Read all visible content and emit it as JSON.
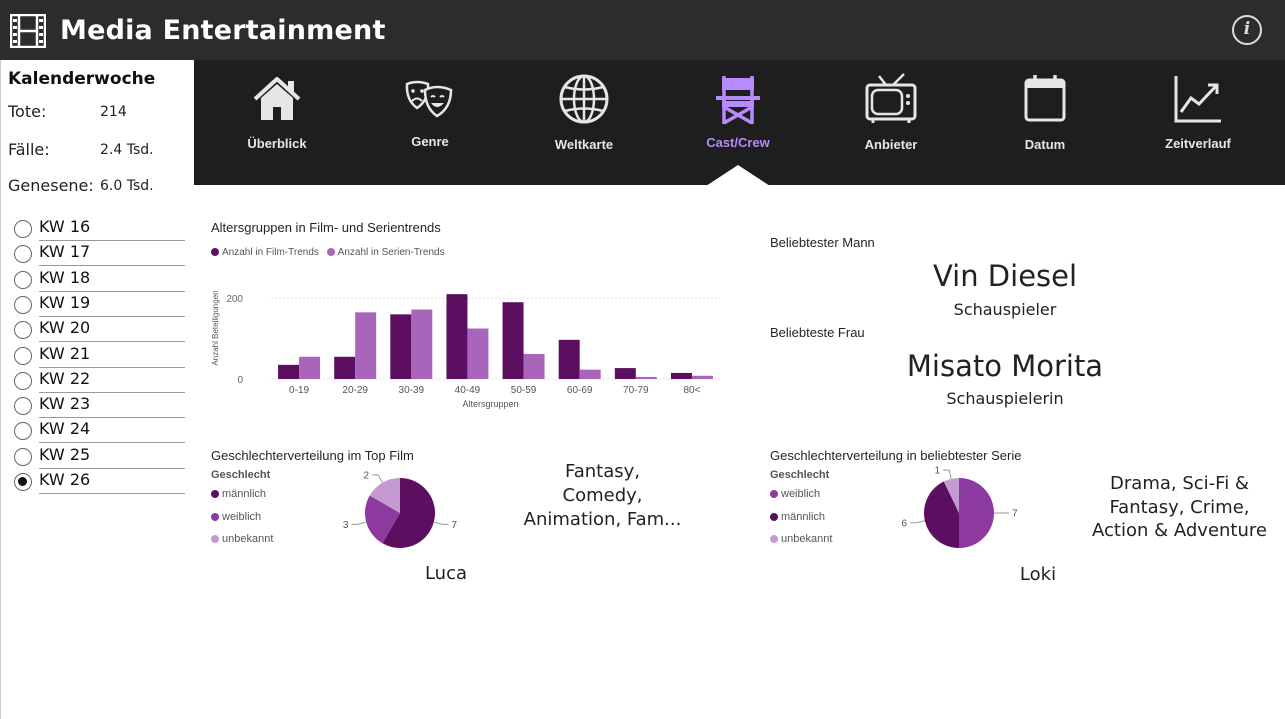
{
  "app": {
    "title": "Media Entertainment",
    "info_icon": "info-icon",
    "info_glyph": "i"
  },
  "sidebar": {
    "title": "Kalenderwoche",
    "stats": [
      {
        "label": "Tote:",
        "value": "214"
      },
      {
        "label": "Fälle:",
        "value": "2.4 Tsd."
      },
      {
        "label": "Genesene:",
        "value": "6.0 Tsd."
      }
    ],
    "weeks": [
      {
        "label": "KW 16",
        "checked": false
      },
      {
        "label": "KW 17",
        "checked": false
      },
      {
        "label": "KW 18",
        "checked": false
      },
      {
        "label": "KW 19",
        "checked": false
      },
      {
        "label": "KW 20",
        "checked": false
      },
      {
        "label": "KW 21",
        "checked": false
      },
      {
        "label": "KW 22",
        "checked": false
      },
      {
        "label": "KW 23",
        "checked": false
      },
      {
        "label": "KW 24",
        "checked": false
      },
      {
        "label": "KW 25",
        "checked": false
      },
      {
        "label": "KW 26",
        "checked": true
      }
    ]
  },
  "nav": {
    "items": [
      {
        "label": "Überblick",
        "icon": "house-icon",
        "active": false
      },
      {
        "label": "Genre",
        "icon": "theater-masks-icon",
        "active": false
      },
      {
        "label": "Weltkarte",
        "icon": "globe-icon",
        "active": false
      },
      {
        "label": "Cast/Crew",
        "icon": "director-chair-icon",
        "active": true
      },
      {
        "label": "Anbieter",
        "icon": "tv-icon",
        "active": false
      },
      {
        "label": "Datum",
        "icon": "calendar-icon",
        "active": false
      },
      {
        "label": "Zeitverlauf",
        "icon": "line-chart-icon",
        "active": false
      }
    ]
  },
  "colors": {
    "dark_purple": "#5c0e61",
    "medium_purple": "#8c3aa0",
    "light_purple": "#a865b9",
    "pale_purple": "#c59ad3",
    "active_nav": "#b78bff"
  },
  "age_chart": {
    "title": "Altersgruppen in Film- und Serientrends",
    "legend": [
      "Anzahl in Film-Trends",
      "Anzahl in Serien-Trends"
    ]
  },
  "chart_data": [
    {
      "type": "bar",
      "title": "Altersgruppen in Film- und Serientrends",
      "xlabel": "Altersgruppen",
      "ylabel": "Anzahl Beteiligungen",
      "categories": [
        "0-19",
        "20-29",
        "30-39",
        "40-49",
        "50-59",
        "60-69",
        "70-79",
        "80<"
      ],
      "series": [
        {
          "name": "Anzahl in Film-Trends",
          "color": "#5c0e61",
          "values": [
            35,
            55,
            160,
            210,
            190,
            97,
            27,
            15
          ]
        },
        {
          "name": "Anzahl in Serien-Trends",
          "color": "#a865b9",
          "values": [
            55,
            165,
            172,
            125,
            62,
            23,
            5,
            8
          ]
        }
      ],
      "ylim": [
        0,
        250
      ],
      "yticks": [
        0,
        200
      ],
      "grid": true,
      "legend_position": "top-left"
    },
    {
      "type": "pie",
      "title": "Geschlechterverteilung im Top Film",
      "legend_title": "Geschlecht",
      "slices": [
        {
          "label": "männlich",
          "value": 7,
          "color": "#5c0e61"
        },
        {
          "label": "weiblich",
          "value": 3,
          "color": "#8c3aa0"
        },
        {
          "label": "unbekannt",
          "value": 2,
          "color": "#c59ad3"
        }
      ],
      "legend_position": "left"
    },
    {
      "type": "pie",
      "title": "Geschlechterverteilung in beliebtester Serie",
      "legend_title": "Geschlecht",
      "slices": [
        {
          "label": "weiblich",
          "value": 7,
          "color": "#8c3aa0"
        },
        {
          "label": "männlich",
          "value": 6,
          "color": "#5c0e61"
        },
        {
          "label": "unbekannt",
          "value": 1,
          "color": "#c59ad3"
        }
      ],
      "legend_position": "left"
    }
  ],
  "popular": {
    "male_title": "Beliebtester Mann",
    "male_name": "Vin Diesel",
    "male_role": "Schauspieler",
    "female_title": "Beliebteste Frau",
    "female_name": "Misato Morita",
    "female_role": "Schauspielerin"
  },
  "top_film": {
    "title": "Geschlechterverteilung im Top Film",
    "legend_title": "Geschlecht",
    "genre_lines": [
      "Fantasy,",
      "Comedy,",
      "Animation, Fam..."
    ],
    "name": "Luca"
  },
  "top_series": {
    "title": "Geschlechterverteilung in beliebtester Serie",
    "legend_title": "Geschlecht",
    "genre_lines": [
      "Drama, Sci-Fi &",
      "Fantasy, Crime,",
      "Action & Adventure"
    ],
    "name": "Loki"
  }
}
